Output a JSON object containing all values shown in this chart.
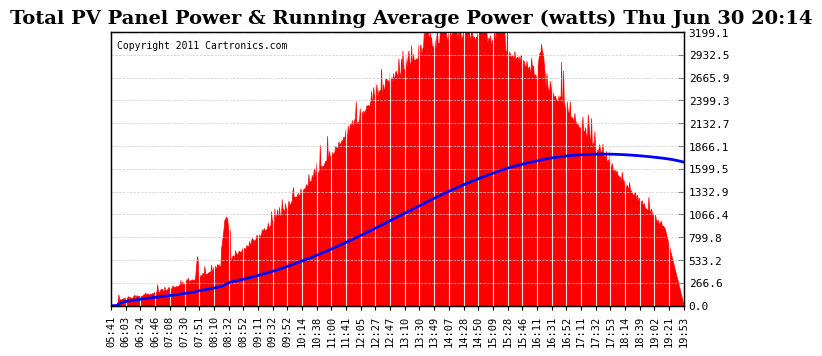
{
  "title": "Total PV Panel Power & Running Average Power (watts) Thu Jun 30 20:14",
  "copyright": "Copyright 2011 Cartronics.com",
  "background_color": "#ffffff",
  "plot_bg_color": "#ffffff",
  "fill_color": "#ff0000",
  "line_color": "#0000ff",
  "grid_color": "#ffffff",
  "ymin": 0.0,
  "ymax": 3199.1,
  "yticks": [
    0.0,
    266.6,
    533.2,
    799.8,
    1066.4,
    1332.9,
    1599.5,
    1866.1,
    2132.7,
    2399.3,
    2665.9,
    2932.5,
    3199.1
  ],
  "x_labels": [
    "05:41",
    "06:03",
    "06:24",
    "06:46",
    "07:08",
    "07:30",
    "07:51",
    "08:10",
    "08:32",
    "08:52",
    "09:11",
    "09:32",
    "09:52",
    "10:14",
    "10:38",
    "11:00",
    "11:41",
    "12:05",
    "12:27",
    "12:47",
    "13:10",
    "13:30",
    "13:49",
    "14:07",
    "14:28",
    "14:50",
    "15:09",
    "15:28",
    "15:46",
    "16:11",
    "16:31",
    "16:52",
    "17:11",
    "17:32",
    "17:53",
    "18:14",
    "18:39",
    "19:02",
    "19:21",
    "19:53"
  ],
  "title_fontsize": 14,
  "tick_fontsize": 7.5,
  "copyright_fontsize": 7
}
